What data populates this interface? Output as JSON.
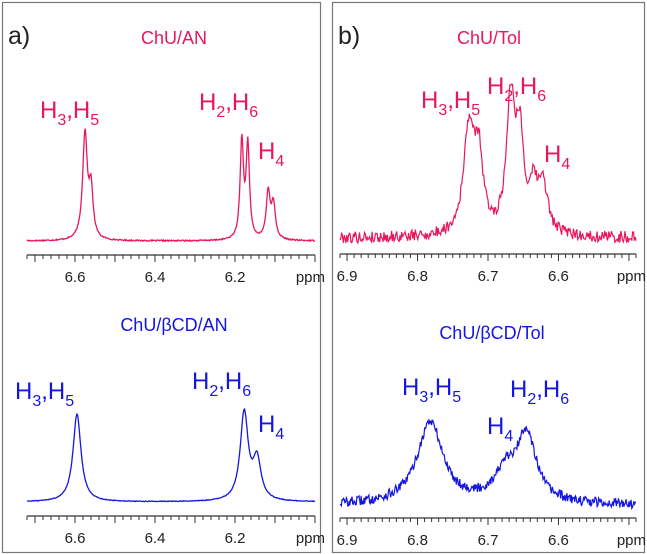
{
  "panels": [
    {
      "label": "a)",
      "top": {
        "title": "ChU/AN",
        "color": "#e8175d",
        "xlim": [
          6.72,
          6.0
        ],
        "ticks": [
          "6.6",
          "6.4",
          "6.2"
        ],
        "unit": "ppm",
        "annotations": [
          {
            "main": "H",
            "sub": "3",
            "main2": ",H",
            "sub2": "5"
          },
          {
            "main": "H",
            "sub": "2",
            "main2": ",H",
            "sub2": "6"
          },
          {
            "main": "H",
            "sub": "4"
          }
        ]
      },
      "bottom": {
        "title": "ChU/βCD/AN",
        "color": "#1515e0",
        "xlim": [
          6.72,
          6.0
        ],
        "ticks": [
          "6.6",
          "6.4",
          "6.2"
        ],
        "unit": "ppm",
        "annotations": [
          {
            "main": "H",
            "sub": "3",
            "main2": ",H",
            "sub2": "5"
          },
          {
            "main": "H",
            "sub": "2",
            "main2": ",H",
            "sub2": "6"
          },
          {
            "main": "H",
            "sub": "4"
          }
        ]
      }
    },
    {
      "label": "b)",
      "top": {
        "title": "ChU/Tol",
        "color": "#e8175d",
        "xlim": [
          6.91,
          6.49
        ],
        "ticks": [
          "6.9",
          "6.8",
          "6.7",
          "6.6"
        ],
        "unit": "ppm",
        "annotations": [
          {
            "main": "H",
            "sub": "3",
            "main2": ",H",
            "sub2": "5"
          },
          {
            "main": "H",
            "sub": "2",
            "main2": ",H",
            "sub2": "6"
          },
          {
            "main": "H",
            "sub": "4"
          }
        ]
      },
      "bottom": {
        "title": "ChU/βCD/Tol",
        "color": "#1515e0",
        "xlim": [
          6.91,
          6.49
        ],
        "ticks": [
          "6.9",
          "6.8",
          "6.7",
          "6.6"
        ],
        "unit": "ppm",
        "annotations": [
          {
            "main": "H",
            "sub": "3",
            "main2": ",H",
            "sub2": "5"
          },
          {
            "main": "H",
            "sub": "2",
            "main2": ",H",
            "sub2": "6"
          },
          {
            "main": "H",
            "sub": "4"
          }
        ]
      }
    }
  ],
  "chart_data": [
    {
      "type": "line",
      "title": "ChU/AN",
      "xlabel": "ppm",
      "xlim": [
        6.72,
        6.0
      ],
      "x_reversed": true,
      "peaks": [
        {
          "center": 6.575,
          "height": 1.0,
          "width": 0.007
        },
        {
          "center": 6.56,
          "height": 0.45,
          "width": 0.006
        },
        {
          "center": 6.183,
          "height": 0.92,
          "width": 0.005
        },
        {
          "center": 6.168,
          "height": 0.88,
          "width": 0.005
        },
        {
          "center": 6.117,
          "height": 0.44,
          "width": 0.006
        },
        {
          "center": 6.104,
          "height": 0.32,
          "width": 0.006
        }
      ],
      "annotations": [
        "H3,H5",
        "H2,H6",
        "H4"
      ]
    },
    {
      "type": "line",
      "title": "ChU/βCD/AN",
      "xlabel": "ppm",
      "xlim": [
        6.72,
        6.0
      ],
      "x_reversed": true,
      "peaks": [
        {
          "center": 6.595,
          "height": 1.0,
          "width": 0.012
        },
        {
          "center": 6.177,
          "height": 1.0,
          "width": 0.012
        },
        {
          "center": 6.145,
          "height": 0.45,
          "width": 0.012
        }
      ],
      "annotations": [
        "H3,H5",
        "H2,H6",
        "H4"
      ]
    },
    {
      "type": "line",
      "title": "ChU/Tol",
      "xlabel": "ppm",
      "xlim": [
        6.91,
        6.49
      ],
      "x_reversed": true,
      "peaks": [
        {
          "center": 6.727,
          "height": 0.82,
          "width": 0.009
        },
        {
          "center": 6.713,
          "height": 0.55,
          "width": 0.007
        },
        {
          "center": 6.668,
          "height": 1.0,
          "width": 0.007
        },
        {
          "center": 6.655,
          "height": 0.72,
          "width": 0.007
        },
        {
          "center": 6.635,
          "height": 0.3,
          "width": 0.006
        },
        {
          "center": 6.622,
          "height": 0.38,
          "width": 0.008
        }
      ],
      "annotations": [
        "H3,H5",
        "H2,H6",
        "H4"
      ]
    },
    {
      "type": "line",
      "title": "ChU/βCD/Tol",
      "xlabel": "ppm",
      "xlim": [
        6.91,
        6.49
      ],
      "x_reversed": true,
      "peaks": [
        {
          "center": 6.782,
          "height": 1.0,
          "width": 0.022
        },
        {
          "center": 6.675,
          "height": 0.35,
          "width": 0.02
        },
        {
          "center": 6.645,
          "height": 0.82,
          "width": 0.016
        }
      ],
      "annotations": [
        "H3,H5",
        "H4",
        "H2,H6"
      ]
    }
  ]
}
